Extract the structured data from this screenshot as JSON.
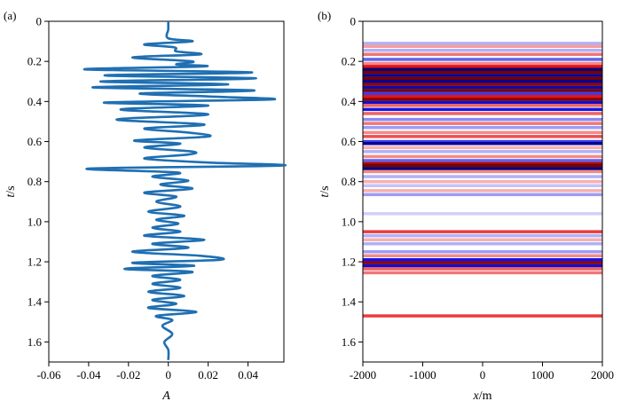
{
  "chart_data": [
    {
      "panel_label": "(a)",
      "type": "line",
      "xlabel": "A",
      "ylabel": "t/s",
      "xlim": [
        -0.06,
        0.058
      ],
      "ylim": [
        0,
        1.7
      ],
      "y_inverted": true,
      "grid": false,
      "xticks": [
        -0.06,
        -0.04,
        -0.02,
        0,
        0.02,
        0.04
      ],
      "xtick_labels": [
        "-0.06",
        "-0.04",
        "-0.02",
        "0",
        "0.02",
        "0.04"
      ],
      "yticks": [
        0,
        0.2,
        0.4,
        0.6,
        0.8,
        1.0,
        1.2,
        1.4,
        1.6
      ],
      "ytick_labels": [
        "0",
        "0.2",
        "0.4",
        "0.6",
        "0.8",
        "1.0",
        "1.2",
        "1.4",
        "1.6"
      ],
      "series": [
        {
          "color": "#1f6fb2",
          "t": [
            0.0,
            0.04,
            0.085,
            0.1,
            0.115,
            0.13,
            0.15,
            0.165,
            0.18,
            0.2,
            0.215,
            0.225,
            0.24,
            0.255,
            0.27,
            0.285,
            0.3,
            0.315,
            0.33,
            0.345,
            0.36,
            0.375,
            0.39,
            0.405,
            0.42,
            0.44,
            0.465,
            0.49,
            0.515,
            0.535,
            0.555,
            0.575,
            0.595,
            0.61,
            0.63,
            0.65,
            0.665,
            0.685,
            0.705,
            0.72,
            0.735,
            0.755,
            0.775,
            0.795,
            0.815,
            0.835,
            0.855,
            0.875,
            0.9,
            0.925,
            0.95,
            0.97,
            0.99,
            1.01,
            1.03,
            1.05,
            1.07,
            1.09,
            1.11,
            1.13,
            1.15,
            1.17,
            1.19,
            1.205,
            1.22,
            1.235,
            1.25,
            1.27,
            1.29,
            1.31,
            1.33,
            1.35,
            1.37,
            1.39,
            1.41,
            1.43,
            1.45,
            1.47,
            1.49,
            1.52,
            1.56,
            1.6,
            1.64,
            1.69
          ],
          "A": [
            0.0,
            0.0,
            0.0,
            0.012,
            -0.012,
            0.003,
            0.004,
            0.016,
            -0.018,
            0.012,
            0.004,
            0.018,
            -0.042,
            0.042,
            -0.032,
            0.044,
            -0.034,
            0.03,
            -0.038,
            0.043,
            -0.014,
            0.02,
            0.052,
            -0.032,
            0.02,
            -0.024,
            0.02,
            -0.026,
            0.018,
            -0.012,
            0.01,
            0.02,
            -0.017,
            0.006,
            -0.012,
            0.012,
            0.01,
            -0.012,
            0.02,
            0.057,
            -0.04,
            0.005,
            -0.008,
            0.01,
            -0.004,
            0.012,
            -0.012,
            0.004,
            -0.006,
            0.006,
            -0.01,
            0.008,
            -0.006,
            0.005,
            -0.008,
            0.006,
            -0.012,
            0.018,
            -0.008,
            0.01,
            -0.018,
            0.016,
            0.026,
            -0.018,
            0.013,
            -0.022,
            0.012,
            -0.008,
            0.006,
            -0.008,
            0.006,
            -0.01,
            0.008,
            -0.008,
            0.004,
            -0.01,
            0.014,
            -0.006,
            0.002,
            -0.003,
            0.002,
            -0.002,
            0.0,
            0.0
          ]
        }
      ]
    },
    {
      "panel_label": "(b)",
      "type": "heatmap",
      "xlabel": "x/m",
      "ylabel": "t/s",
      "xlim": [
        -2000,
        2000
      ],
      "ylim": [
        0,
        1.7
      ],
      "y_inverted": true,
      "colormap": "seismic (blue negative, red positive)",
      "xticks": [
        -2000,
        -1000,
        0,
        1000,
        2000
      ],
      "xtick_labels": [
        "-2000",
        "-1000",
        "0",
        "1000",
        "2000"
      ],
      "yticks": [
        0,
        0.2,
        0.4,
        0.6,
        0.8,
        1.0,
        1.2,
        1.4,
        1.6
      ],
      "ytick_labels": [
        "0",
        "0.2",
        "0.4",
        "0.6",
        "0.8",
        "1.0",
        "1.2",
        "1.4",
        "1.6"
      ],
      "bands": [
        {
          "t": 0.11,
          "value": -0.2
        },
        {
          "t": 0.125,
          "value": 0.25
        },
        {
          "t": 0.145,
          "value": -0.2
        },
        {
          "t": 0.165,
          "value": 0.35
        },
        {
          "t": 0.19,
          "value": -0.4
        },
        {
          "t": 0.21,
          "value": 0.3
        },
        {
          "t": 0.225,
          "value": 0.6
        },
        {
          "t": 0.24,
          "value": -1.0
        },
        {
          "t": 0.255,
          "value": 1.0
        },
        {
          "t": 0.27,
          "value": -0.9
        },
        {
          "t": 0.285,
          "value": 1.0
        },
        {
          "t": 0.3,
          "value": -0.9
        },
        {
          "t": 0.315,
          "value": 0.9
        },
        {
          "t": 0.33,
          "value": -0.8
        },
        {
          "t": 0.345,
          "value": 1.0
        },
        {
          "t": 0.36,
          "value": -0.5
        },
        {
          "t": 0.375,
          "value": 0.6
        },
        {
          "t": 0.39,
          "value": 0.95
        },
        {
          "t": 0.405,
          "value": -0.7
        },
        {
          "t": 0.42,
          "value": 0.4
        },
        {
          "t": 0.44,
          "value": -0.6
        },
        {
          "t": 0.46,
          "value": 0.4
        },
        {
          "t": 0.49,
          "value": -0.3
        },
        {
          "t": 0.51,
          "value": 0.35
        },
        {
          "t": 0.53,
          "value": -0.25
        },
        {
          "t": 0.555,
          "value": 0.3
        },
        {
          "t": 0.575,
          "value": 0.45
        },
        {
          "t": 0.6,
          "value": -0.5
        },
        {
          "t": 0.61,
          "value": -0.9
        },
        {
          "t": 0.63,
          "value": 0.2
        },
        {
          "t": 0.65,
          "value": -0.2
        },
        {
          "t": 0.675,
          "value": 0.3
        },
        {
          "t": 0.695,
          "value": -0.4
        },
        {
          "t": 0.71,
          "value": 0.8
        },
        {
          "t": 0.72,
          "value": 1.0
        },
        {
          "t": 0.735,
          "value": -1.0
        },
        {
          "t": 0.75,
          "value": 0.3
        },
        {
          "t": 0.775,
          "value": -0.2
        },
        {
          "t": 0.8,
          "value": 0.2
        },
        {
          "t": 0.82,
          "value": -0.15
        },
        {
          "t": 0.845,
          "value": 0.2
        },
        {
          "t": 0.865,
          "value": -0.25
        },
        {
          "t": 0.96,
          "value": -0.12
        },
        {
          "t": 1.05,
          "value": 0.5
        },
        {
          "t": 1.07,
          "value": -0.2
        },
        {
          "t": 1.09,
          "value": 0.2
        },
        {
          "t": 1.11,
          "value": -0.2
        },
        {
          "t": 1.15,
          "value": -0.25
        },
        {
          "t": 1.17,
          "value": 0.3
        },
        {
          "t": 1.19,
          "value": -0.6
        },
        {
          "t": 1.205,
          "value": 0.9
        },
        {
          "t": 1.22,
          "value": -0.7
        },
        {
          "t": 1.235,
          "value": 0.4
        },
        {
          "t": 1.255,
          "value": 0.35
        },
        {
          "t": 1.47,
          "value": 0.5
        }
      ]
    }
  ]
}
